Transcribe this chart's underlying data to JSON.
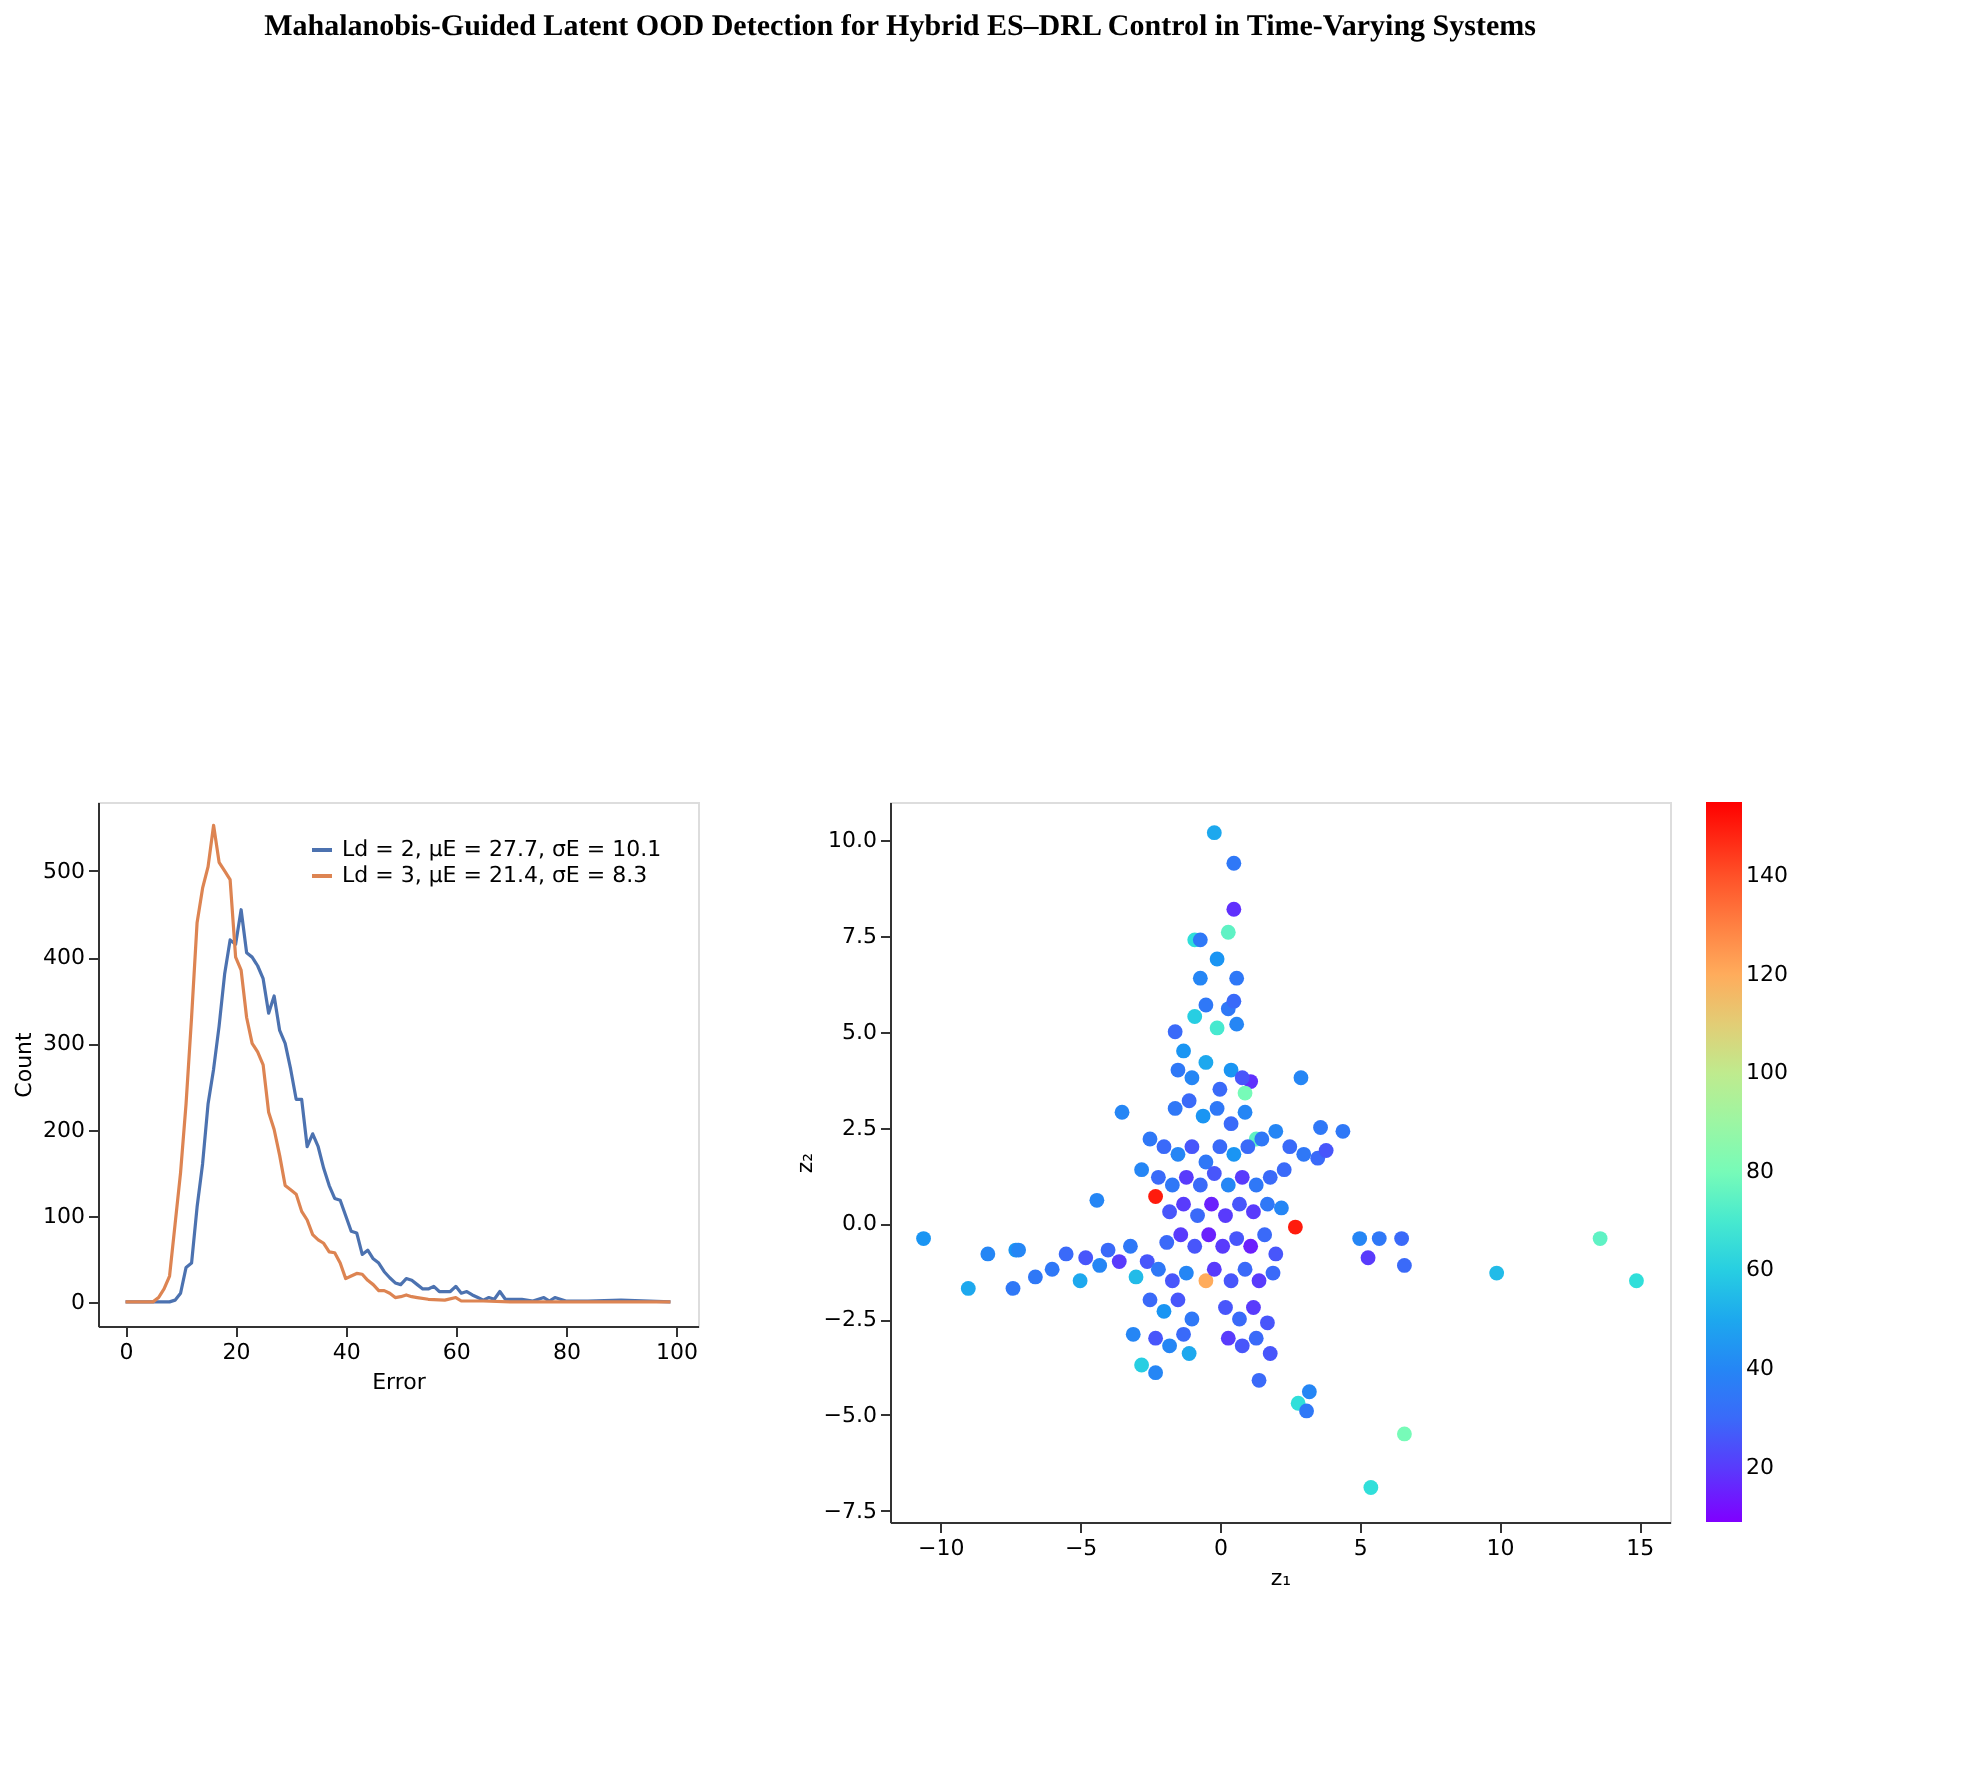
{
  "chart_data": [
    {
      "type": "line",
      "annotations": [
        "Mahalanobis-Guided Latent OOD Detection for Hybrid ES–DRL Control in Time-Varying Systems"
      ],
      "xlabel": "Error",
      "ylabel": "Count",
      "xlim": [
        -5,
        104
      ],
      "ylim": [
        -28,
        580
      ],
      "xticks": [
        0,
        20,
        40,
        60,
        80,
        100
      ],
      "yticks": [
        0,
        100,
        200,
        300,
        400,
        500
      ],
      "grid": false,
      "legend": "top right",
      "line_style": "solid",
      "series": [
        {
          "name": "Ld = 2, μE = 27.7, σE = 10.1",
          "color": "#4c72b0",
          "x": [
            0,
            8,
            9,
            10,
            11,
            12,
            13,
            14,
            15,
            16,
            17,
            18,
            19,
            20,
            21,
            22,
            23,
            24,
            25,
            26,
            27,
            28,
            29,
            30,
            31,
            32,
            33,
            34,
            35,
            36,
            37,
            38,
            39,
            40,
            41,
            42,
            43,
            44,
            45,
            46,
            47,
            48,
            49,
            50,
            51,
            52,
            53,
            54,
            55,
            56,
            57,
            58,
            59,
            60,
            61,
            62,
            63,
            64,
            65,
            66,
            67,
            68,
            69,
            70,
            72,
            74,
            76,
            77,
            78,
            80,
            84,
            90,
            99
          ],
          "values": [
            0,
            0,
            2,
            10,
            40,
            45,
            110,
            160,
            230,
            270,
            320,
            380,
            420,
            415,
            455,
            405,
            400,
            390,
            375,
            335,
            355,
            315,
            300,
            270,
            235,
            235,
            180,
            195,
            180,
            155,
            135,
            120,
            118,
            100,
            82,
            80,
            55,
            60,
            50,
            45,
            35,
            28,
            22,
            20,
            27,
            25,
            20,
            15,
            15,
            18,
            12,
            12,
            12,
            18,
            10,
            12,
            8,
            5,
            2,
            5,
            3,
            12,
            3,
            3,
            3,
            1,
            5,
            1,
            5,
            1,
            1,
            2,
            0
          ]
        },
        {
          "name": "Ld = 3, μE = 21.4, σE = 8.3",
          "color": "#dd8452",
          "x": [
            0,
            5,
            6,
            7,
            8,
            9,
            10,
            11,
            12,
            13,
            14,
            15,
            16,
            17,
            18,
            19,
            20,
            21,
            22,
            23,
            24,
            25,
            26,
            27,
            28,
            29,
            30,
            31,
            32,
            33,
            34,
            35,
            36,
            37,
            38,
            39,
            40,
            41,
            42,
            43,
            44,
            45,
            46,
            47,
            48,
            49,
            50,
            51,
            52,
            53,
            55,
            58,
            60,
            61,
            65,
            70,
            80,
            99
          ],
          "values": [
            0,
            0,
            5,
            15,
            30,
            90,
            150,
            230,
            330,
            440,
            480,
            505,
            553,
            510,
            500,
            490,
            400,
            385,
            330,
            300,
            290,
            275,
            220,
            200,
            170,
            135,
            130,
            125,
            105,
            95,
            78,
            72,
            68,
            58,
            57,
            45,
            27,
            30,
            33,
            32,
            25,
            20,
            13,
            13,
            10,
            5,
            6,
            8,
            6,
            5,
            3,
            2,
            5,
            1,
            1,
            0,
            0,
            0
          ]
        }
      ]
    },
    {
      "type": "scatter",
      "xlabel": "z₁",
      "ylabel": "z₂",
      "xlim": [
        -11.8,
        16.1
      ],
      "ylim": [
        -7.8,
        11.0
      ],
      "xticks": [
        {
          "value": -10,
          "label": "−10"
        },
        {
          "value": -5,
          "label": "−5"
        },
        0,
        5,
        10,
        15
      ],
      "yticks": [
        {
          "value": -7.5,
          "label": "−7.5"
        },
        {
          "value": -5,
          "label": "−5.0"
        },
        {
          "value": -2.5,
          "label": "−2.5"
        },
        {
          "value": 0,
          "label": "0.0"
        },
        2.5,
        {
          "value": 5,
          "label": "5.0"
        },
        7.5,
        {
          "value": 10,
          "label": "10.0"
        }
      ],
      "grid": false,
      "marker": "circle",
      "clim": [
        9,
        155
      ],
      "cticks": [
        20,
        40,
        60,
        80,
        100,
        120,
        140
      ],
      "x": [
        -0.2,
        0.5,
        0.5,
        0.3,
        -0.9,
        -0.7,
        -0.1,
        -0.7,
        0.6,
        1.1,
        0.9,
        2.9,
        3.6,
        4.4,
        5.0,
        5.7,
        6.5,
        5.3,
        6.6,
        9.9,
        13.6,
        14.9,
        1.4,
        3.2,
        2.8,
        3.1,
        6.6,
        5.4,
        2.7,
        -2.3,
        -10.6,
        -9.0,
        -8.3,
        -7.3,
        -7.2,
        -7.4,
        -6.6,
        -4.4,
        -3.5,
        -3.1,
        -2.8,
        -2.3,
        -1.1,
        -0.5,
        -6.0,
        -5.5,
        -5.0,
        -4.8,
        -4.3,
        -4.0,
        -3.6,
        -3.2,
        -3.0,
        -2.6,
        -1.6,
        -1.3,
        -0.9,
        -0.5,
        -0.1,
        0.3,
        0.5,
        0.6,
        -1.5,
        -1.0,
        -0.5,
        0.0,
        0.4,
        0.8,
        -1.6,
        -1.1,
        -0.6,
        -0.1,
        0.4,
        0.9,
        1.3,
        -2.5,
        -2.0,
        -1.5,
        -1.0,
        -0.5,
        0.0,
        0.5,
        1.0,
        1.5,
        2.0,
        2.5,
        3.0,
        3.5,
        3.8,
        -2.8,
        -2.2,
        -1.7,
        -1.2,
        -0.7,
        -0.2,
        0.3,
        0.8,
        1.3,
        1.8,
        2.3,
        -1.8,
        -1.3,
        -0.8,
        -0.3,
        0.2,
        0.7,
        1.2,
        1.7,
        2.2,
        -1.9,
        -1.4,
        -0.9,
        -0.4,
        0.1,
        0.6,
        1.1,
        1.6,
        2.0,
        -2.2,
        -1.7,
        -1.2,
        -0.2,
        0.4,
        0.9,
        1.4,
        1.9,
        -2.5,
        -2.0,
        -1.5,
        -1.0,
        0.2,
        0.7,
        1.2,
        1.7,
        -2.3,
        -1.8,
        -1.3,
        0.3,
        0.8,
        1.3,
        1.8
      ],
      "values": [
        10.2,
        9.4,
        8.2,
        7.6,
        7.4,
        7.4,
        6.9,
        6.4,
        6.4,
        3.7,
        3.4,
        3.8,
        2.5,
        2.4,
        -0.4,
        -0.4,
        -0.4,
        -0.9,
        -1.1,
        -1.3,
        -0.4,
        -1.5,
        -4.1,
        -4.4,
        -4.7,
        -4.9,
        -5.5,
        -6.9,
        -0.1,
        0.7,
        -0.4,
        -1.7,
        -0.8,
        -0.7,
        -0.7,
        -1.7,
        -1.4,
        0.6,
        2.9,
        -2.9,
        -3.7,
        -3.9,
        -3.4,
        -1.5,
        -1.2,
        -0.8,
        -1.5,
        -0.9,
        -1.1,
        -0.7,
        -1.0,
        -0.6,
        -1.4,
        -1.0,
        5.0,
        4.5,
        5.4,
        5.7,
        5.1,
        5.6,
        5.8,
        5.2,
        4.0,
        3.8,
        4.2,
        3.5,
        4.0,
        3.8,
        3.0,
        3.2,
        2.8,
        3.0,
        2.6,
        2.9,
        2.2,
        2.2,
        2.0,
        1.8,
        2.0,
        1.6,
        2.0,
        1.8,
        2.0,
        2.2,
        2.4,
        2.0,
        1.8,
        1.7,
        1.9,
        1.4,
        1.2,
        1.0,
        1.2,
        1.0,
        1.3,
        1.0,
        1.2,
        1.0,
        1.2,
        1.4,
        0.3,
        0.5,
        0.2,
        0.5,
        0.2,
        0.5,
        0.3,
        0.5,
        0.4,
        -0.5,
        -0.3,
        -0.6,
        -0.3,
        -0.6,
        -0.4,
        -0.6,
        -0.3,
        -0.8,
        -1.2,
        -1.5,
        -1.3,
        -1.2,
        -1.5,
        -1.2,
        -1.5,
        -1.3,
        -2.0,
        -2.3,
        -2.0,
        -2.5,
        -2.2,
        -2.5,
        -2.2,
        -2.6,
        -3.0,
        -3.2,
        -2.9,
        -3.0,
        -3.2,
        -3.0,
        -3.4
      ],
      "cvalues": [
        50,
        35,
        18,
        75,
        65,
        35,
        45,
        40,
        35,
        18,
        80,
        40,
        35,
        35,
        40,
        35,
        30,
        20,
        30,
        55,
        75,
        65,
        30,
        40,
        65,
        35,
        80,
        65,
        150,
        150,
        45,
        50,
        40,
        45,
        40,
        35,
        35,
        40,
        40,
        40,
        60,
        40,
        50,
        120,
        35,
        30,
        50,
        25,
        40,
        30,
        20,
        35,
        55,
        25,
        30,
        45,
        60,
        35,
        70,
        35,
        30,
        40,
        35,
        40,
        50,
        30,
        45,
        25,
        35,
        30,
        45,
        35,
        30,
        40,
        75,
        35,
        30,
        40,
        25,
        35,
        30,
        45,
        30,
        35,
        40,
        30,
        35,
        30,
        25,
        40,
        30,
        35,
        20,
        30,
        25,
        40,
        20,
        35,
        30,
        30,
        25,
        20,
        30,
        15,
        20,
        25,
        20,
        35,
        40,
        30,
        20,
        25,
        15,
        20,
        25,
        15,
        30,
        25,
        35,
        25,
        40,
        20,
        25,
        30,
        20,
        30,
        30,
        45,
        25,
        35,
        25,
        30,
        20,
        25,
        25,
        40,
        30,
        20,
        25,
        30,
        25
      ]
    }
  ]
}
